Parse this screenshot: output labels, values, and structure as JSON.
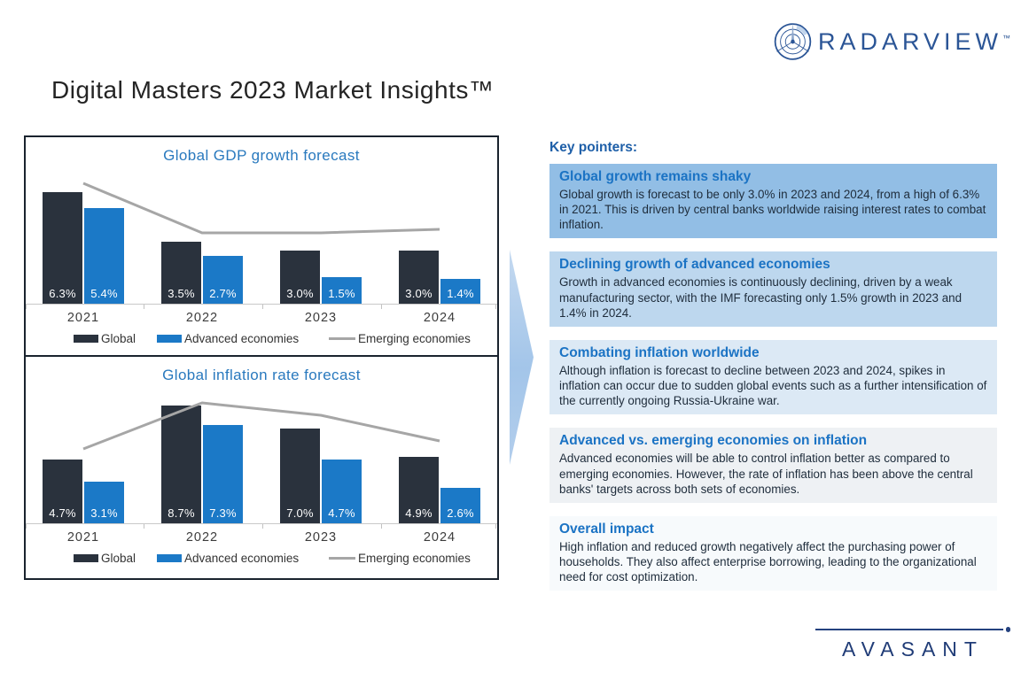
{
  "header": {
    "title": "Digital Masters 2023 Market Insights™"
  },
  "brand": {
    "radarview": {
      "name": "RADARVIEW",
      "tm": "™"
    },
    "avasant": {
      "name": "AVASANT"
    }
  },
  "colors": {
    "global_bar": "#2A323D",
    "advanced_bar": "#1B79C7",
    "emerging_line": "#A6A6A6",
    "accent_blue": "#1B73C4",
    "chart_title_blue": "#2979BE",
    "box_border": "#1A232E",
    "arrow_fill": "#A9C9E9"
  },
  "key_pointers": {
    "heading": "Key pointers:",
    "cards": [
      {
        "title": "Global growth remains shaky",
        "body": "Global growth is forecast to be only 3.0% in 2023 and 2024, from a high of 6.3% in 2021. This is driven by central banks worldwide raising interest rates to combat inflation.",
        "bg": "#92BEE5"
      },
      {
        "title": "Declining growth of advanced economies",
        "body": "Growth in advanced economies is continuously declining, driven by a weak manufacturing sector, with the IMF forecasting only 1.5% growth in 2023 and 1.4% in 2024.",
        "bg": "#BDD7EE"
      },
      {
        "title": "Combating inflation worldwide",
        "body": "Although inflation is forecast to decline between 2023 and 2024, spikes in inflation can occur due to sudden global events such as a further intensification of the currently ongoing Russia-Ukraine war.",
        "bg": "#DCE9F5"
      },
      {
        "title": "Advanced vs. emerging economies on inflation",
        "body": "Advanced economies will be able to control inflation better as compared to emerging economies. However, the rate of inflation has been above the central banks' targets across both sets of economies.",
        "bg": "#EEF1F4"
      },
      {
        "title": "Overall impact",
        "body": "High inflation and reduced growth negatively affect the purchasing power of households. They also affect enterprise borrowing, leading to the organizational need for cost optimization.",
        "bg": "#F7FAFC"
      }
    ]
  },
  "chart_data": [
    {
      "type": "bar",
      "title": "Global GDP growth forecast",
      "categories": [
        "2021",
        "2022",
        "2023",
        "2024"
      ],
      "unit": "%",
      "ylim": [
        0,
        8
      ],
      "grid": false,
      "data_labels": "inside-base",
      "legend_position": "bottom",
      "series": [
        {
          "name": "Global",
          "kind": "bar",
          "color": "#2A323D",
          "values": [
            6.3,
            3.5,
            3.0,
            3.0
          ]
        },
        {
          "name": "Advanced economies",
          "kind": "bar",
          "color": "#1B79C7",
          "values": [
            5.4,
            2.7,
            1.5,
            1.4
          ]
        },
        {
          "name": "Emerging economies",
          "kind": "line",
          "color": "#A6A6A6",
          "values": [
            6.8,
            4.0,
            4.0,
            4.2
          ],
          "values_estimated": true
        }
      ]
    },
    {
      "type": "bar",
      "title": "Global inflation rate forecast",
      "categories": [
        "2021",
        "2022",
        "2023",
        "2024"
      ],
      "unit": "%",
      "ylim": [
        0,
        10.5
      ],
      "grid": false,
      "data_labels": "inside-base",
      "legend_position": "bottom",
      "series": [
        {
          "name": "Global",
          "kind": "bar",
          "color": "#2A323D",
          "values": [
            4.7,
            8.7,
            7.0,
            4.9
          ]
        },
        {
          "name": "Advanced economies",
          "kind": "bar",
          "color": "#1B79C7",
          "values": [
            3.1,
            7.3,
            4.7,
            2.6
          ]
        },
        {
          "name": "Emerging economies",
          "kind": "line",
          "color": "#A6A6A6",
          "values": [
            5.5,
            8.9,
            8.0,
            6.1
          ],
          "values_estimated": true
        }
      ]
    }
  ]
}
